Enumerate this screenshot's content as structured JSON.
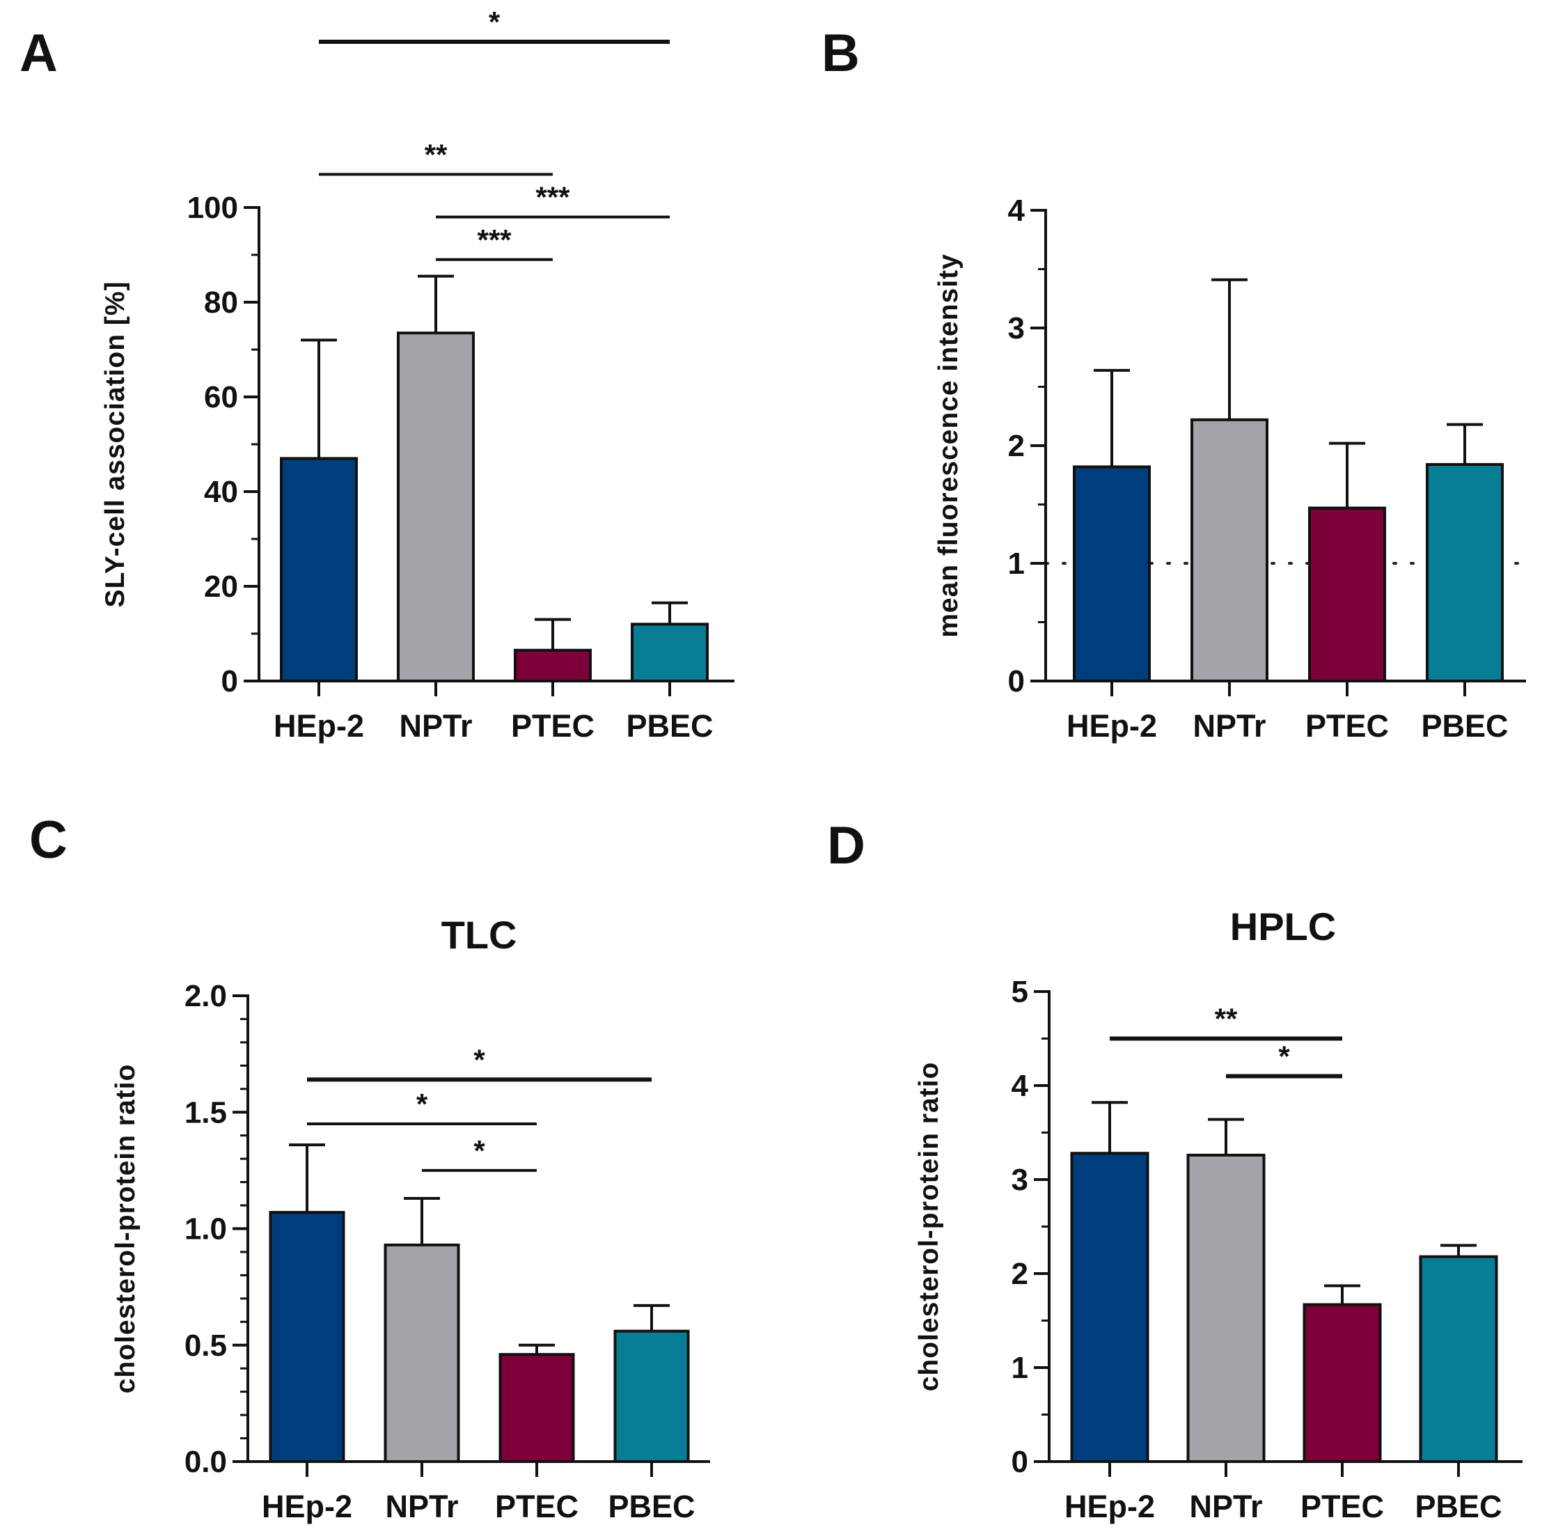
{
  "chart_data": [
    {
      "panel": "A",
      "type": "bar",
      "title": "",
      "xlabel": "",
      "ylabel": "SLY-cell association [%]",
      "categories": [
        "HEp-2",
        "NPTr",
        "PTEC",
        "PBEC"
      ],
      "values": [
        47,
        73.5,
        6.5,
        12
      ],
      "errors": [
        25,
        12,
        6.5,
        4.5
      ],
      "colors": [
        "#003d7c",
        "#a3a3a9",
        "#7d003a",
        "#087e96"
      ],
      "ylim": [
        0,
        100
      ],
      "yticks": [
        0,
        20,
        40,
        60,
        80,
        100
      ],
      "ytick_labels": [
        "0",
        "20",
        "40",
        "60",
        "80",
        "100"
      ],
      "minor_tick_step": 10,
      "reference_line": null,
      "significance": [
        {
          "from": 0,
          "to": 3,
          "label": "*",
          "level": 135
        },
        {
          "from": 0,
          "to": 2,
          "label": "**",
          "level": 107
        },
        {
          "from": 1,
          "to": 3,
          "label": "***",
          "level": 98
        },
        {
          "from": 1,
          "to": 2,
          "label": "***",
          "level": 89
        }
      ]
    },
    {
      "panel": "B",
      "type": "bar",
      "title": "",
      "xlabel": "",
      "ylabel": "mean fluorescence intensity",
      "categories": [
        "HEp-2",
        "NPTr",
        "PTEC",
        "PBEC"
      ],
      "values": [
        1.82,
        2.22,
        1.47,
        1.84
      ],
      "errors": [
        0.82,
        1.19,
        0.55,
        0.34
      ],
      "colors": [
        "#003d7c",
        "#a3a3a9",
        "#7d003a",
        "#087e96"
      ],
      "ylim": [
        0,
        4
      ],
      "yticks": [
        0,
        1,
        2,
        3,
        4
      ],
      "ytick_labels": [
        "0",
        "1",
        "2",
        "3",
        "4"
      ],
      "minor_tick_step": 0.5,
      "reference_line": 1,
      "significance": []
    },
    {
      "panel": "C",
      "type": "bar",
      "title": "TLC",
      "xlabel": "",
      "ylabel": "cholesterol-protein ratio",
      "categories": [
        "HEp-2",
        "NPTr",
        "PTEC",
        "PBEC"
      ],
      "values": [
        1.07,
        0.93,
        0.46,
        0.56
      ],
      "errors": [
        0.29,
        0.2,
        0.04,
        0.11
      ],
      "colors": [
        "#003d7c",
        "#a3a3a9",
        "#7d003a",
        "#087e96"
      ],
      "ylim": [
        0,
        2
      ],
      "yticks": [
        0,
        0.5,
        1,
        1.5,
        2
      ],
      "ytick_labels": [
        "0.0",
        "0.5",
        "1.0",
        "1.5",
        "2.0"
      ],
      "minor_tick_step": 0.1,
      "reference_line": null,
      "significance": [
        {
          "from": 0,
          "to": 3,
          "label": "*",
          "level": 1.64
        },
        {
          "from": 0,
          "to": 2,
          "label": "*",
          "level": 1.45
        },
        {
          "from": 1,
          "to": 2,
          "label": "*",
          "level": 1.25
        }
      ]
    },
    {
      "panel": "D",
      "type": "bar",
      "title": "HPLC",
      "xlabel": "",
      "ylabel": "cholesterol-protein ratio",
      "categories": [
        "HEp-2",
        "NPTr",
        "PTEC",
        "PBEC"
      ],
      "values": [
        3.28,
        3.26,
        1.67,
        2.18
      ],
      "errors": [
        0.54,
        0.38,
        0.2,
        0.12
      ],
      "colors": [
        "#003d7c",
        "#a3a3a9",
        "#7d003a",
        "#087e96"
      ],
      "ylim": [
        0,
        5
      ],
      "yticks": [
        0,
        1,
        2,
        3,
        4,
        5
      ],
      "ytick_labels": [
        "0",
        "1",
        "2",
        "3",
        "4",
        "5"
      ],
      "minor_tick_step": 0.5,
      "reference_line": null,
      "significance": [
        {
          "from": 0,
          "to": 2,
          "label": "**",
          "level": 4.5
        },
        {
          "from": 1,
          "to": 2,
          "label": "*",
          "level": 4.1
        }
      ]
    }
  ]
}
